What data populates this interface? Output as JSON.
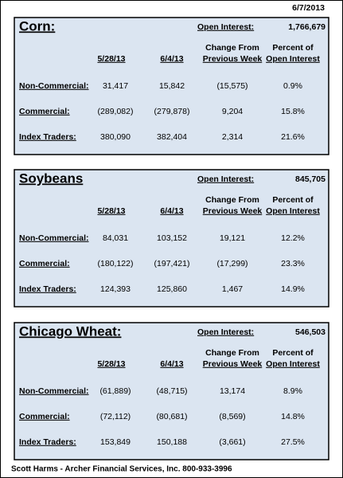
{
  "date": "6/7/2013",
  "panels": [
    {
      "title": "Corn:",
      "open_interest_label": "Open Interest:",
      "open_interest": "1,766,679",
      "columns": [
        [
          "5/28/13"
        ],
        [
          "6/4/13"
        ],
        [
          "Change From",
          "Previous Week"
        ],
        [
          "Percent of",
          "Open Interest"
        ]
      ],
      "rows": [
        {
          "label": "Non-Commercial:",
          "values": [
            "31,417",
            "15,842",
            "(15,575)",
            "0.9%"
          ]
        },
        {
          "label": "Commercial:",
          "values": [
            "(289,082)",
            "(279,878)",
            "9,204",
            "15.8%"
          ]
        },
        {
          "label": "Index Traders:",
          "values": [
            "380,090",
            "382,404",
            "2,314",
            "21.6%"
          ]
        }
      ]
    },
    {
      "title": "Soybeans",
      "open_interest_label": "Open Interest:",
      "open_interest": "845,705",
      "columns": [
        [
          "5/28/13"
        ],
        [
          "6/4/13"
        ],
        [
          "Change From",
          "Previous Week"
        ],
        [
          "Percent of",
          "Open Interest"
        ]
      ],
      "rows": [
        {
          "label": "Non-Commercial:",
          "values": [
            "84,031",
            "103,152",
            "19,121",
            "12.2%"
          ]
        },
        {
          "label": "Commercial:",
          "values": [
            "(180,122)",
            "(197,421)",
            "(17,299)",
            "23.3%"
          ]
        },
        {
          "label": "Index Traders:",
          "values": [
            "124,393",
            "125,860",
            "1,467",
            "14.9%"
          ]
        }
      ]
    },
    {
      "title": "Chicago Wheat:",
      "open_interest_label": "Open Interest:",
      "open_interest": "546,503",
      "columns": [
        [
          "5/28/13"
        ],
        [
          "6/4/13"
        ],
        [
          "Change From",
          "Previous Week"
        ],
        [
          "Percent of",
          "Open Interest"
        ]
      ],
      "rows": [
        {
          "label": "Non-Commercial:",
          "values": [
            "(61,889)",
            "(48,715)",
            "13,174",
            "8.9%"
          ]
        },
        {
          "label": "Commercial:",
          "values": [
            "(72,112)",
            "(80,681)",
            "(8,569)",
            "14.8%"
          ]
        },
        {
          "label": "Index Traders:",
          "values": [
            "153,849",
            "150,188",
            "(3,661)",
            "27.5%"
          ]
        }
      ]
    }
  ],
  "footer": "Scott Harms - Archer Financial Services, Inc.  800-933-3996"
}
